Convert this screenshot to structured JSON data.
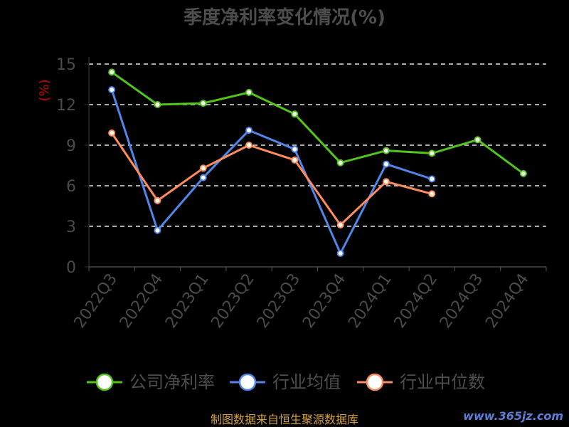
{
  "chart_data": {
    "type": "line",
    "title": "季度净利率变化情况(%)",
    "ylabel": "(%)",
    "xlabel": "",
    "ylim": [
      0,
      15
    ],
    "yticks": [
      0,
      3,
      6,
      9,
      12,
      15
    ],
    "grid": true,
    "legend_position": "bottom",
    "categories": [
      "2022Q3",
      "2022Q4",
      "2023Q1",
      "2023Q2",
      "2023Q3",
      "2023Q4",
      "2024Q1",
      "2024Q2",
      "2024Q3",
      "2024Q4"
    ],
    "series": [
      {
        "name": "公司净利率",
        "color": "#52c41a",
        "values": [
          14.4,
          12.0,
          12.1,
          12.9,
          11.3,
          7.7,
          8.6,
          8.4,
          9.4,
          6.9
        ]
      },
      {
        "name": "行业均值",
        "color": "#4f86e8",
        "values": [
          13.1,
          2.7,
          6.6,
          10.1,
          8.7,
          1.0,
          7.6,
          6.5,
          null,
          null
        ]
      },
      {
        "name": "行业中位数",
        "color": "#ff8c5a",
        "values": [
          9.9,
          4.9,
          7.3,
          9.0,
          7.9,
          3.1,
          6.3,
          5.4,
          null,
          null
        ]
      }
    ]
  },
  "footer": {
    "source": "制图数据来自恒生聚源数据库",
    "watermark": "www.365jz.com"
  }
}
